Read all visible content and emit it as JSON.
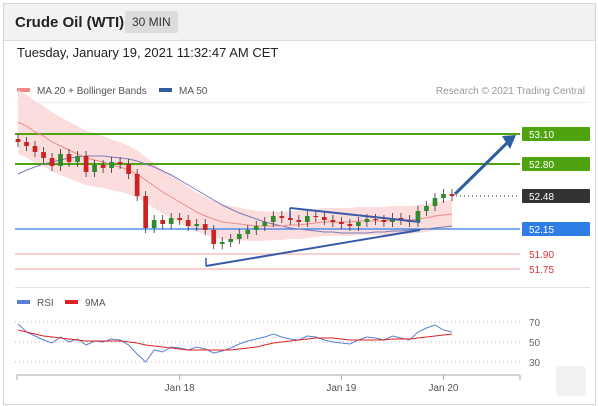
{
  "header": {
    "title": "Crude Oil (WTI)",
    "timeframe": "30 MIN",
    "datetime": "Tuesday, January 19, 2021 11:32:47 AM CET"
  },
  "legend": {
    "ma20_label": "MA 20 + Bollinger Bands",
    "ma50_label": "MA 50",
    "source": "Research © 2021 Trading Central",
    "rsi_label": "RSI",
    "rsi_ma_label": "9MA"
  },
  "colors": {
    "ma20": "#f08a8a",
    "band": "#fcd9d9",
    "ma50": "#7a7ab8",
    "up": "#2e8b2e",
    "down": "#cc2222",
    "resistance": "#4ea30e",
    "current": "#333333",
    "pivot": "#2f7ee6",
    "support": "#e06060",
    "triangle": "#3a5aa8",
    "arrow": "#2f5e9e",
    "rsi": "#5b7fd6",
    "rsi_ma": "#dd2222"
  },
  "chart_data": [
    {
      "type": "candlestick",
      "name": "price",
      "ylim": [
        51.6,
        53.4
      ],
      "levels": [
        {
          "label": "53.10",
          "value": 53.1,
          "kind": "resistance"
        },
        {
          "label": "52.80",
          "value": 52.8,
          "kind": "resistance"
        },
        {
          "label": "52.48",
          "value": 52.48,
          "kind": "current"
        },
        {
          "label": "52.15",
          "value": 52.15,
          "kind": "pivot"
        },
        {
          "label": "51.90",
          "value": 51.9,
          "kind": "support"
        },
        {
          "label": "51.75",
          "value": 51.75,
          "kind": "support"
        }
      ],
      "x_ticks": [
        "Jan 18",
        "Jan 19",
        "Jan 20"
      ],
      "x_tick_index": [
        19,
        38,
        50
      ],
      "n_bars": 52,
      "close": [
        53.02,
        52.98,
        52.92,
        52.86,
        52.78,
        52.9,
        52.82,
        52.88,
        52.72,
        52.79,
        52.76,
        52.82,
        52.8,
        52.7,
        52.48,
        52.16,
        52.24,
        52.2,
        52.26,
        52.24,
        52.18,
        52.2,
        52.14,
        52.0,
        52.02,
        52.05,
        52.1,
        52.14,
        52.18,
        52.22,
        52.28,
        52.26,
        52.24,
        52.22,
        52.28,
        52.27,
        52.24,
        52.22,
        52.2,
        52.18,
        52.22,
        52.25,
        52.24,
        52.22,
        52.26,
        52.24,
        52.22,
        52.33,
        52.38,
        52.46,
        52.5,
        52.48
      ],
      "ma20": [
        53.22,
        53.18,
        53.12,
        53.08,
        53.02,
        52.98,
        52.94,
        52.9,
        52.86,
        52.84,
        52.82,
        52.79,
        52.77,
        52.74,
        52.7,
        52.64,
        52.58,
        52.52,
        52.47,
        52.42,
        52.37,
        52.32,
        52.28,
        52.25,
        52.22,
        52.21,
        52.2,
        52.19,
        52.18,
        52.18,
        52.18,
        52.18,
        52.19,
        52.19,
        52.2,
        52.21,
        52.22,
        52.22,
        52.22,
        52.22,
        52.23,
        52.23,
        52.23,
        52.23,
        52.24,
        52.24,
        52.24,
        52.25,
        52.26,
        52.28,
        52.29,
        52.3
      ],
      "ma50": [
        52.7,
        52.74,
        52.77,
        52.8,
        52.82,
        52.84,
        52.86,
        52.87,
        52.88,
        52.88,
        52.88,
        52.87,
        52.86,
        52.85,
        52.83,
        52.8,
        52.77,
        52.73,
        52.69,
        52.64,
        52.59,
        52.54,
        52.49,
        52.44,
        52.39,
        52.35,
        52.31,
        52.28,
        52.25,
        52.22,
        52.2,
        52.18,
        52.16,
        52.15,
        52.14,
        52.13,
        52.12,
        52.12,
        52.11,
        52.11,
        52.11,
        52.11,
        52.12,
        52.12,
        52.13,
        52.13,
        52.14,
        52.14,
        52.15,
        52.16,
        52.17,
        52.18
      ]
    },
    {
      "type": "line",
      "name": "RSI",
      "ylim": [
        20,
        80
      ],
      "y_ticks": [
        70,
        50,
        30
      ],
      "series": [
        {
          "name": "RSI",
          "values": [
            68,
            60,
            56,
            52,
            49,
            55,
            50,
            53,
            47,
            51,
            50,
            53,
            52,
            47,
            38,
            30,
            42,
            40,
            45,
            44,
            42,
            45,
            43,
            39,
            41,
            44,
            48,
            51,
            53,
            55,
            58,
            55,
            53,
            52,
            56,
            55,
            52,
            50,
            49,
            48,
            52,
            55,
            54,
            52,
            56,
            54,
            52,
            60,
            64,
            67,
            62,
            60
          ]
        },
        {
          "name": "9MA",
          "values": [
            62,
            60,
            58,
            56,
            55,
            54,
            53,
            52,
            51,
            51,
            51,
            51,
            51,
            50,
            49,
            47,
            46,
            45,
            44,
            43,
            42,
            42,
            42,
            42,
            42,
            42,
            43,
            44,
            45,
            47,
            49,
            50,
            51,
            52,
            53,
            54,
            54,
            54,
            53,
            52,
            52,
            52,
            52,
            52,
            53,
            53,
            53,
            54,
            55,
            56,
            57,
            58
          ]
        }
      ]
    }
  ]
}
